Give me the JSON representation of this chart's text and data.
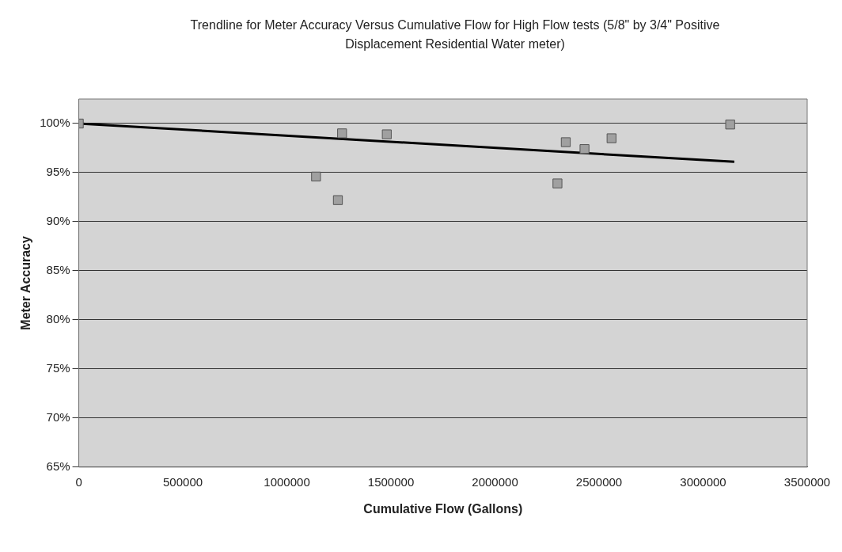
{
  "chart_data": {
    "type": "scatter",
    "title": "Trendline for Meter Accuracy Versus Cumulative Flow for High Flow tests (5/8\" by 3/4\" Positive Displacement Residential Water meter)",
    "xlabel": "Cumulative Flow (Gallons)",
    "ylabel": "Meter Accuracy",
    "xlim": [
      0,
      3500000
    ],
    "xticks": [
      0,
      500000,
      1000000,
      1500000,
      2000000,
      2500000,
      3000000,
      3500000
    ],
    "ylim": [
      65,
      102.5
    ],
    "yticks": [
      {
        "value": 65,
        "label": "65%"
      },
      {
        "value": 70,
        "label": "70%"
      },
      {
        "value": 75,
        "label": "75%"
      },
      {
        "value": 80,
        "label": "80%"
      },
      {
        "value": 85,
        "label": "85%"
      },
      {
        "value": 90,
        "label": "90%"
      },
      {
        "value": 95,
        "label": "95%"
      },
      {
        "value": 100,
        "label": "100%"
      }
    ],
    "grid": "y",
    "legend": false,
    "marker": "square",
    "series": [
      {
        "color": "#a0a0a0",
        "x": [
          0,
          1140000,
          1245000,
          1265000,
          1480000,
          2300000,
          2340000,
          2430000,
          2560000,
          3130000
        ],
        "values": [
          100,
          94.6,
          92.2,
          99,
          98.9,
          93.9,
          98.1,
          97.4,
          98.5,
          99.9
        ]
      },
      {
        "type": "line",
        "color": "#000000",
        "marker": "none",
        "x": [
          0,
          3150000
        ],
        "values": [
          100,
          96.1
        ]
      }
    ]
  }
}
